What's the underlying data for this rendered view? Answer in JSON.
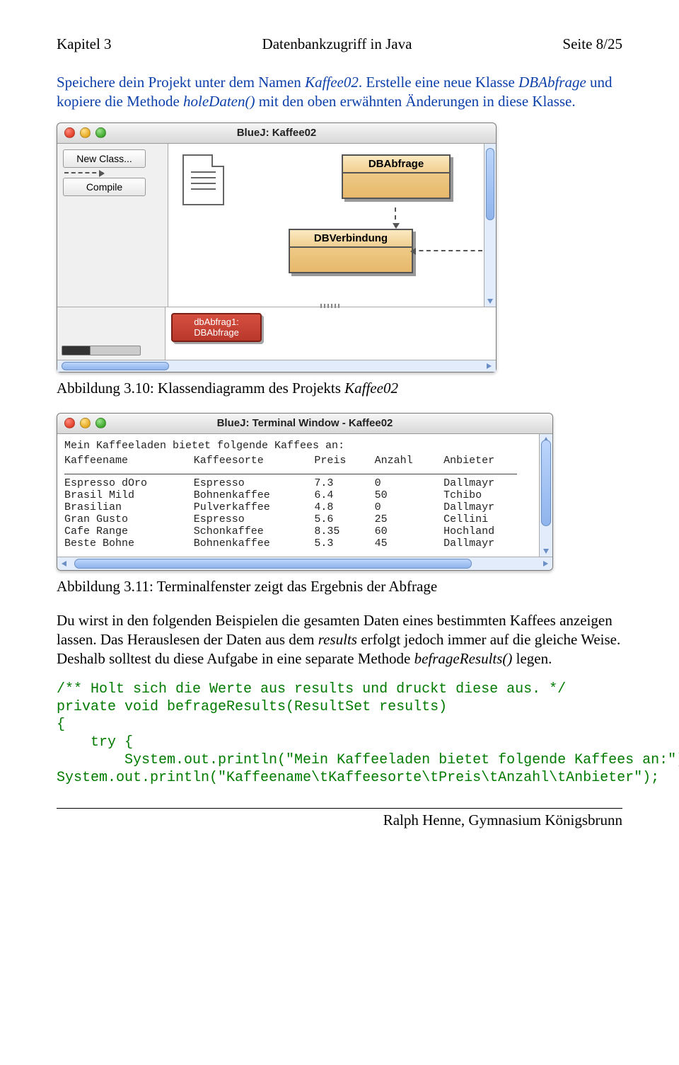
{
  "header": {
    "left": "Kapitel 3",
    "center": "Datenbankzugriff in Java",
    "right": "Seite 8/25"
  },
  "paragraph1": {
    "t1": "Speichere dein Projekt unter dem Namen ",
    "kaffee": "Kaffee02",
    "t2": ". Erstelle eine neue Klasse ",
    "dbabfrage": "DBAbfrage",
    "t3": " und kopiere die Methode ",
    "holedaten": "holeDaten()",
    "t4": " mit den oben erwähnten Änderungen in diese Klasse."
  },
  "bluej": {
    "title": "BlueJ: Kaffee02",
    "btn_newclass": "New Class...",
    "btn_compile": "Compile",
    "class1": "DBAbfrage",
    "class2": "DBVerbindung",
    "obj_line1": "dbAbfrag1:",
    "obj_line2": "DBAbfrage"
  },
  "caption1": {
    "label": "Abbildung 3.10: Klassendiagramm des Projekts ",
    "proj": "Kaffee02"
  },
  "terminal": {
    "title": "BlueJ: Terminal Window - Kaffee02",
    "intro": "Mein Kaffeeladen bietet folgende Kaffees an:",
    "columns": [
      "Kaffeename",
      "Kaffeesorte",
      "Preis",
      "Anzahl",
      "Anbieter"
    ],
    "rows": [
      [
        "Espresso dOro",
        "Espresso",
        "7.3",
        "0",
        "Dallmayr"
      ],
      [
        "Brasil Mild",
        "Bohnenkaffee",
        "6.4",
        "50",
        "Tchibo"
      ],
      [
        "Brasilian",
        "Pulverkaffee",
        "4.8",
        "0",
        "Dallmayr"
      ],
      [
        "Gran Gusto",
        "Espresso",
        "5.6",
        "25",
        "Cellini"
      ],
      [
        "Cafe Range",
        "Schonkaffee",
        "8.35",
        "60",
        "Hochland"
      ],
      [
        "Beste Bohne",
        "Bohnenkaffee",
        "5.3",
        "45",
        "Dallmayr"
      ]
    ]
  },
  "caption2": "Abbildung 3.11: Terminalfenster zeigt das Ergebnis der Abfrage",
  "paragraph2": {
    "t1": "Du wirst in den folgenden Beispielen die gesamten Daten eines bestimmten Kaffees anzeigen lassen. Das Herauslesen der Daten aus dem ",
    "results": "results",
    "t2": " erfolgt jedoch immer auf die gleiche Weise. Deshalb solltest du diese Aufgabe in eine separate Methode ",
    "befrage": "befrageResults()",
    "t3": " legen."
  },
  "code": {
    "l1": "/** Holt sich die Werte aus results und druckt diese aus. */",
    "l2": "private void befrageResults(ResultSet results)",
    "l3": "{",
    "l4": "    try {",
    "l5": "        System.out.println(\"Mein Kaffeeladen bietet folgende Kaffees an:\");",
    "l6": "System.out.println(\"Kaffeename\\tKaffeesorte\\tPreis\\tAnzahl\\tAnbieter\");"
  },
  "footer": "Ralph Henne, Gymnasium Königsbrunn"
}
